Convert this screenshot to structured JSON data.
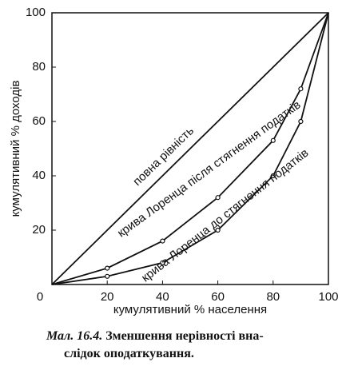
{
  "chart_data": {
    "type": "line",
    "xlabel": "кумулятивний % населення",
    "ylabel": "кумулятивний % доходів",
    "x": [
      0,
      20,
      40,
      60,
      80,
      90,
      100
    ],
    "series": [
      {
        "name": "повна рівність",
        "color": "#111111",
        "values": [
          0,
          20,
          40,
          60,
          80,
          90,
          100
        ],
        "markers": false
      },
      {
        "name": "крива Лоренца після стягнення податків",
        "color": "#111111",
        "values": [
          0,
          6,
          16,
          32,
          53,
          72,
          100
        ],
        "markers": true
      },
      {
        "name": "крива Лоренца до стягнення податків",
        "color": "#111111",
        "values": [
          0,
          3,
          8,
          20,
          40,
          60,
          100
        ],
        "markers": true
      }
    ],
    "xlim": [
      0,
      100
    ],
    "ylim": [
      0,
      100
    ],
    "xticks": [
      0,
      20,
      40,
      60,
      80,
      100
    ],
    "yticks": [
      20,
      40,
      60,
      80,
      100
    ],
    "grid": false
  },
  "caption": {
    "label": "Мал. 16.4.",
    "lines": [
      "Зменшення нерівності вна-",
      "слідок оподаткування."
    ]
  }
}
